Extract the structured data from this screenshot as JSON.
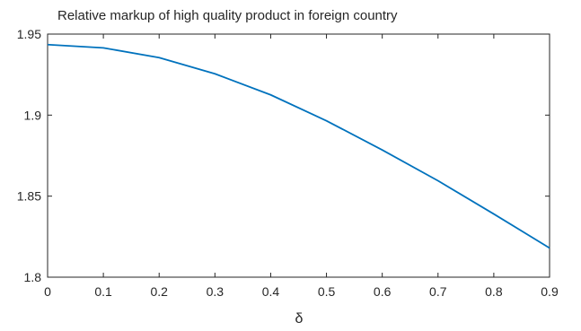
{
  "chart_data": {
    "type": "line",
    "title": "Relative markup of high quality product in foreign country",
    "xlabel": "δ",
    "ylabel": "",
    "xlim": [
      0,
      0.9
    ],
    "ylim": [
      1.8,
      1.95
    ],
    "xticks": [
      0,
      0.1,
      0.2,
      0.3,
      0.4,
      0.5,
      0.6,
      0.7,
      0.8,
      0.9
    ],
    "xtick_labels": [
      "0",
      "0.1",
      "0.2",
      "0.3",
      "0.4",
      "0.5",
      "0.6",
      "0.7",
      "0.8",
      "0.9"
    ],
    "yticks": [
      1.8,
      1.85,
      1.9,
      1.95
    ],
    "ytick_labels": [
      "1.8",
      "1.85",
      "1.9",
      "1.95"
    ],
    "grid": false,
    "legend": "none",
    "series": [
      {
        "color": "#0072BD",
        "x": [
          0,
          0.1,
          0.2,
          0.3,
          0.4,
          0.5,
          0.6,
          0.7,
          0.8,
          0.9
        ],
        "y": [
          1.9435,
          1.9415,
          1.9355,
          1.9255,
          1.9125,
          1.8965,
          1.8785,
          1.8595,
          1.839,
          1.818
        ]
      }
    ]
  }
}
